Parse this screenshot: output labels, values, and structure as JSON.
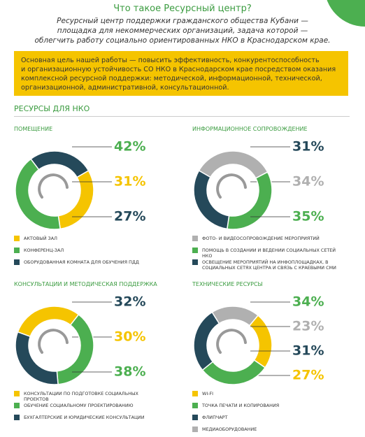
{
  "header": {
    "title": "Что такое Ресурсный центр?",
    "subtitle": [
      "Ресурсный центр поддержки гражданского общества Кубани —",
      "площадка для некоммерческих организаций, задача которой —",
      "облегчить работу социально ориентированных НКО в Краснодарском крае."
    ]
  },
  "highlight": [
    "Основная цель нашей работы — повысить эффективность, конкурентоспособность",
    "и организационную устойчивость СО НКО в Краснодарском крае посредством оказания",
    "комплексной ресурсной поддержки: методической, информационной, технической,",
    "организационной, административной, консультационной."
  ],
  "section_title": "РЕСУРСЫ ДЛЯ НКО",
  "chart_data": [
    {
      "type": "donut",
      "title": "ПОМЕЩЕНИЕ",
      "categories": [
        "АКТОВЫЙ ЗАЛ",
        "КОНФЕРЕНЦ-ЗАЛ",
        "ОБОРУДОВАННАЯ КОМНАТА ДЛЯ ОБУЧЕНИЯ ПДД"
      ],
      "values": [
        31,
        42,
        27
      ],
      "value_labels": [
        "31%",
        "42%",
        "27%"
      ],
      "colors": [
        "#f5c400",
        "#4caf50",
        "#25495a"
      ]
    },
    {
      "type": "donut",
      "title": "ИНФОРМАЦИОННОЕ СОПРОВОЖДЕНИЕ",
      "categories": [
        "ФОТО- И ВИДЕОСОПРОВОЖДЕНИЕ МЕРОПРИЯТИЙ",
        "ПОМОЩЬ В СОЗДАНИИ И ВЕДЕНИИ СОЦИАЛЬНЫХ СЕТЕЙ НКО",
        "ОСВЕЩЕНИЕ МЕРОПРИЯТИЙ НА ИНФОПЛОЩАДКАХ, В СОЦИАЛЬНЫХ СЕТЯХ ЦЕНТРА И СВЯЗЬ С КРАЕВЫМИ СМИ"
      ],
      "values": [
        34,
        35,
        31
      ],
      "value_labels": [
        "34%",
        "35%",
        "31%"
      ],
      "colors": [
        "#b0b0b0",
        "#4caf50",
        "#25495a"
      ]
    },
    {
      "type": "donut",
      "title": "КОНСУЛЬТАЦИИ И МЕТОДИЧЕСКАЯ ПОДДЕРЖКА",
      "categories": [
        "КОНСУЛЬТАЦИИ ПО ПОДГОТОВКЕ СОЦИАЛЬНЫХ ПРОЕКТОВ",
        "ОБУЧЕНИЕ СОЦИАЛЬНОМУ ПРОЕКТИРОВАНИЮ",
        "БУХГАЛТЕРСКИЕ И ЮРИДИЧЕСКИЕ КОНСУЛЬТАЦИИ"
      ],
      "values": [
        30,
        38,
        32
      ],
      "value_labels": [
        "30%",
        "38%",
        "32%"
      ],
      "colors": [
        "#f5c400",
        "#4caf50",
        "#25495a"
      ]
    },
    {
      "type": "donut",
      "title": "ТЕХНИЧЕСКИЕ РЕСУРСЫ",
      "categories": [
        "WI-FI",
        "ТОЧКА ПЕЧАТИ И КОПИРОВАНИЯ",
        "ФЛИПЧАРТ",
        "МЕДИАОБОРУДОВАНИЕ"
      ],
      "values": [
        27,
        34,
        31,
        23
      ],
      "value_labels": [
        "27%",
        "34%",
        "31%",
        "23%"
      ],
      "colors": [
        "#f5c400",
        "#4caf50",
        "#25495a",
        "#b0b0b0"
      ]
    }
  ]
}
